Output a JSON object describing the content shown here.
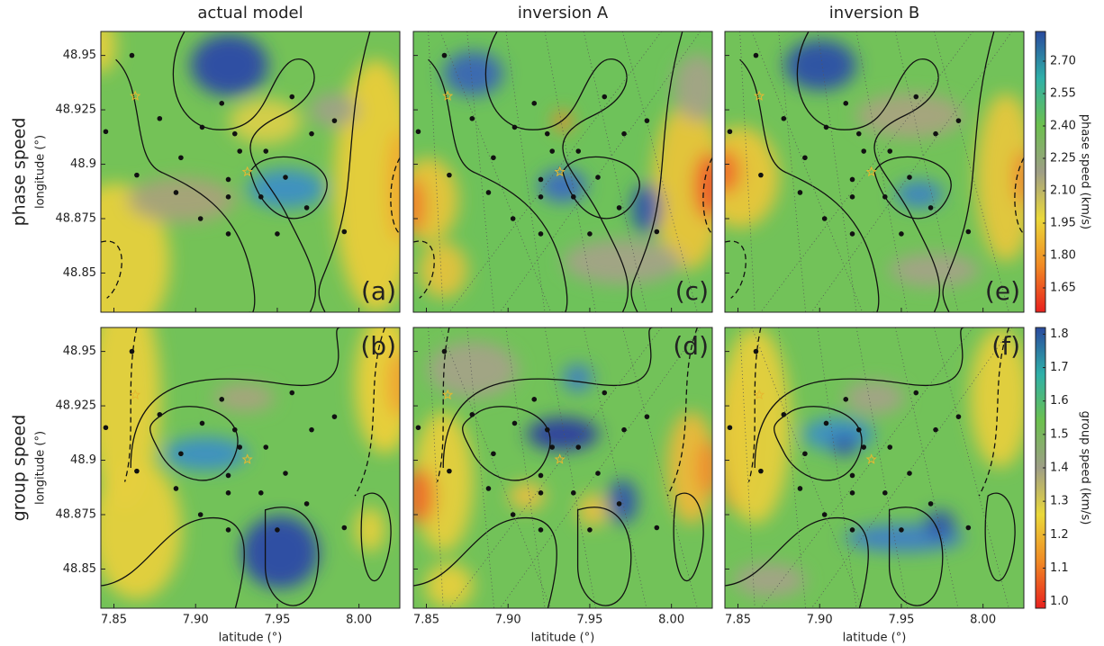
{
  "chart_data": {
    "type": "map",
    "column_titles": [
      "actual model",
      "inversion A",
      "inversion B"
    ],
    "row_labels": [
      "phase speed",
      "group speed"
    ],
    "y_label": "longitude (°)",
    "x_label": "latitude (°)",
    "panel_labels": [
      "(a)",
      "(c)",
      "(e)",
      "(b)",
      "(d)",
      "(f)"
    ],
    "xlim": [
      7.842,
      8.025
    ],
    "xticks": [
      7.85,
      {
        "value": 7.9,
        "label": "7.90"
      },
      7.95,
      {
        "value": 8,
        "label": "8.00"
      }
    ],
    "ylim": [
      48.832,
      48.961
    ],
    "yticks": [
      48.85,
      48.875,
      48.9,
      48.925,
      48.95
    ],
    "stations": {
      "x": [
        7.861,
        7.878,
        7.891,
        7.904,
        7.916,
        7.924,
        7.927,
        7.943,
        7.959,
        7.985,
        7.971,
        7.845,
        7.864,
        7.888,
        7.903,
        7.92,
        7.92,
        7.94,
        7.955,
        7.968,
        7.92,
        7.95,
        7.991
      ],
      "y": [
        48.95,
        48.921,
        48.903,
        48.917,
        48.928,
        48.914,
        48.906,
        48.906,
        48.931,
        48.92,
        48.914,
        48.915,
        48.895,
        48.887,
        48.875,
        48.893,
        48.885,
        48.885,
        48.894,
        48.88,
        48.868,
        48.868,
        48.869
      ]
    },
    "colorbars": [
      {
        "label": "phase speed (km/s)",
        "lim": [
          1.5375,
          2.8375
        ],
        "ticks": [
          1.65,
          {
            "value": 1.8,
            "label": "1.80"
          },
          1.95,
          {
            "value": 2.1,
            "label": "2.10"
          },
          2.25,
          {
            "value": 2.4,
            "label": "2.40"
          },
          2.55,
          {
            "value": 2.7,
            "label": "2.70"
          }
        ]
      },
      {
        "label": "group speed (km/s)",
        "lim": [
          0.98,
          1.82
        ],
        "ticks": [
          {
            "value": 1,
            "label": "1.0"
          },
          1.1,
          1.2,
          1.3,
          1.4,
          1.5,
          1.6,
          1.7,
          1.8
        ]
      }
    ],
    "colormap": [
      "#e8201e",
      "#f08a24",
      "#ead83a",
      "#9e9e86",
      "#6cc04e",
      "#2fb0a8",
      "#2a4a9e"
    ]
  }
}
